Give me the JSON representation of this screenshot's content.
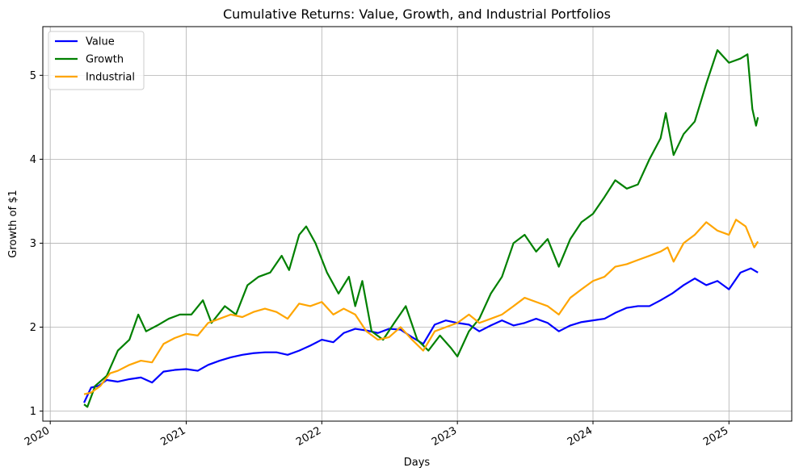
{
  "chart_data": {
    "type": "line",
    "title": "Cumulative Returns: Value, Growth, and Industrial Portfolios",
    "xlabel": "Days",
    "ylabel": "Growth of $1",
    "x_range": [
      "2019-12-12",
      "2025-06-19"
    ],
    "ylim": [
      0.88,
      5.58
    ],
    "x_ticks": [
      {
        "date": "2020-01-01",
        "label": "2020"
      },
      {
        "date": "2021-01-01",
        "label": "2021"
      },
      {
        "date": "2022-01-01",
        "label": "2022"
      },
      {
        "date": "2023-01-01",
        "label": "2023"
      },
      {
        "date": "2024-01-01",
        "label": "2024"
      },
      {
        "date": "2025-01-01",
        "label": "2025"
      }
    ],
    "y_ticks": [
      1,
      2,
      3,
      4,
      5
    ],
    "grid": true,
    "legend_position": "top-left",
    "series": [
      {
        "name": "Value",
        "color": "#0000ff",
        "points": [
          [
            "2020-04-01",
            1.1
          ],
          [
            "2020-04-20",
            1.28
          ],
          [
            "2020-05-10",
            1.3
          ],
          [
            "2020-06-01",
            1.37
          ],
          [
            "2020-07-01",
            1.35
          ],
          [
            "2020-08-01",
            1.38
          ],
          [
            "2020-09-01",
            1.4
          ],
          [
            "2020-10-01",
            1.34
          ],
          [
            "2020-11-01",
            1.47
          ],
          [
            "2020-12-01",
            1.49
          ],
          [
            "2021-01-01",
            1.5
          ],
          [
            "2021-02-01",
            1.48
          ],
          [
            "2021-03-01",
            1.55
          ],
          [
            "2021-04-01",
            1.6
          ],
          [
            "2021-05-01",
            1.64
          ],
          [
            "2021-06-01",
            1.67
          ],
          [
            "2021-07-01",
            1.69
          ],
          [
            "2021-08-01",
            1.7
          ],
          [
            "2021-09-01",
            1.7
          ],
          [
            "2021-10-01",
            1.67
          ],
          [
            "2021-11-01",
            1.72
          ],
          [
            "2021-12-01",
            1.78
          ],
          [
            "2022-01-01",
            1.85
          ],
          [
            "2022-02-01",
            1.82
          ],
          [
            "2022-03-01",
            1.93
          ],
          [
            "2022-04-01",
            1.98
          ],
          [
            "2022-05-01",
            1.96
          ],
          [
            "2022-06-01",
            1.93
          ],
          [
            "2022-07-01",
            1.98
          ],
          [
            "2022-08-01",
            1.97
          ],
          [
            "2022-09-01",
            1.88
          ],
          [
            "2022-10-01",
            1.8
          ],
          [
            "2022-11-01",
            2.03
          ],
          [
            "2022-12-01",
            2.08
          ],
          [
            "2023-01-01",
            2.05
          ],
          [
            "2023-02-01",
            2.03
          ],
          [
            "2023-03-01",
            1.95
          ],
          [
            "2023-04-01",
            2.02
          ],
          [
            "2023-05-01",
            2.08
          ],
          [
            "2023-06-01",
            2.02
          ],
          [
            "2023-07-01",
            2.05
          ],
          [
            "2023-08-01",
            2.1
          ],
          [
            "2023-09-01",
            2.05
          ],
          [
            "2023-10-01",
            1.95
          ],
          [
            "2023-11-01",
            2.02
          ],
          [
            "2023-12-01",
            2.06
          ],
          [
            "2024-01-01",
            2.08
          ],
          [
            "2024-02-01",
            2.1
          ],
          [
            "2024-03-01",
            2.17
          ],
          [
            "2024-04-01",
            2.23
          ],
          [
            "2024-05-01",
            2.25
          ],
          [
            "2024-06-01",
            2.25
          ],
          [
            "2024-07-01",
            2.32
          ],
          [
            "2024-08-01",
            2.4
          ],
          [
            "2024-09-01",
            2.5
          ],
          [
            "2024-10-01",
            2.58
          ],
          [
            "2024-11-01",
            2.5
          ],
          [
            "2024-12-01",
            2.55
          ],
          [
            "2025-01-01",
            2.45
          ],
          [
            "2025-02-01",
            2.65
          ],
          [
            "2025-03-01",
            2.7
          ],
          [
            "2025-03-20",
            2.65
          ]
        ]
      },
      {
        "name": "Growth",
        "color": "#008000",
        "points": [
          [
            "2020-04-01",
            1.08
          ],
          [
            "2020-04-10",
            1.05
          ],
          [
            "2020-05-01",
            1.3
          ],
          [
            "2020-06-01",
            1.42
          ],
          [
            "2020-07-01",
            1.72
          ],
          [
            "2020-08-01",
            1.85
          ],
          [
            "2020-08-25",
            2.15
          ],
          [
            "2020-09-15",
            1.95
          ],
          [
            "2020-10-15",
            2.02
          ],
          [
            "2020-11-15",
            2.1
          ],
          [
            "2020-12-15",
            2.15
          ],
          [
            "2021-01-15",
            2.15
          ],
          [
            "2021-02-15",
            2.32
          ],
          [
            "2021-03-10",
            2.05
          ],
          [
            "2021-04-15",
            2.25
          ],
          [
            "2021-05-15",
            2.15
          ],
          [
            "2021-06-15",
            2.5
          ],
          [
            "2021-07-15",
            2.6
          ],
          [
            "2021-08-15",
            2.65
          ],
          [
            "2021-09-15",
            2.85
          ],
          [
            "2021-10-05",
            2.68
          ],
          [
            "2021-11-01",
            3.1
          ],
          [
            "2021-11-20",
            3.2
          ],
          [
            "2021-12-15",
            3.0
          ],
          [
            "2022-01-15",
            2.65
          ],
          [
            "2022-02-15",
            2.4
          ],
          [
            "2022-03-15",
            2.6
          ],
          [
            "2022-04-01",
            2.25
          ],
          [
            "2022-04-20",
            2.55
          ],
          [
            "2022-05-15",
            1.95
          ],
          [
            "2022-06-15",
            1.85
          ],
          [
            "2022-07-15",
            2.05
          ],
          [
            "2022-08-15",
            2.25
          ],
          [
            "2022-09-15",
            1.85
          ],
          [
            "2022-10-15",
            1.72
          ],
          [
            "2022-11-15",
            1.9
          ],
          [
            "2022-12-15",
            1.75
          ],
          [
            "2023-01-01",
            1.65
          ],
          [
            "2023-02-01",
            1.95
          ],
          [
            "2023-03-01",
            2.1
          ],
          [
            "2023-04-01",
            2.4
          ],
          [
            "2023-05-01",
            2.6
          ],
          [
            "2023-06-01",
            3.0
          ],
          [
            "2023-07-01",
            3.1
          ],
          [
            "2023-08-01",
            2.9
          ],
          [
            "2023-09-01",
            3.05
          ],
          [
            "2023-10-01",
            2.72
          ],
          [
            "2023-11-01",
            3.05
          ],
          [
            "2023-12-01",
            3.25
          ],
          [
            "2024-01-01",
            3.35
          ],
          [
            "2024-02-01",
            3.55
          ],
          [
            "2024-03-01",
            3.75
          ],
          [
            "2024-04-01",
            3.65
          ],
          [
            "2024-05-01",
            3.7
          ],
          [
            "2024-06-01",
            4.0
          ],
          [
            "2024-07-01",
            4.25
          ],
          [
            "2024-07-15",
            4.55
          ],
          [
            "2024-08-05",
            4.05
          ],
          [
            "2024-09-01",
            4.3
          ],
          [
            "2024-10-01",
            4.45
          ],
          [
            "2024-11-01",
            4.9
          ],
          [
            "2024-12-01",
            5.3
          ],
          [
            "2025-01-01",
            5.15
          ],
          [
            "2025-02-01",
            5.2
          ],
          [
            "2025-02-20",
            5.25
          ],
          [
            "2025-03-05",
            4.6
          ],
          [
            "2025-03-15",
            4.4
          ],
          [
            "2025-03-20",
            4.5
          ]
        ]
      },
      {
        "name": "Industrial",
        "color": "#ffa500",
        "points": [
          [
            "2020-04-01",
            1.2
          ],
          [
            "2020-04-20",
            1.22
          ],
          [
            "2020-05-15",
            1.3
          ],
          [
            "2020-06-10",
            1.45
          ],
          [
            "2020-07-01",
            1.48
          ],
          [
            "2020-08-01",
            1.55
          ],
          [
            "2020-09-01",
            1.6
          ],
          [
            "2020-10-01",
            1.58
          ],
          [
            "2020-11-01",
            1.8
          ],
          [
            "2020-12-01",
            1.87
          ],
          [
            "2021-01-01",
            1.92
          ],
          [
            "2021-02-01",
            1.9
          ],
          [
            "2021-03-01",
            2.05
          ],
          [
            "2021-04-01",
            2.1
          ],
          [
            "2021-05-01",
            2.15
          ],
          [
            "2021-06-01",
            2.12
          ],
          [
            "2021-07-01",
            2.18
          ],
          [
            "2021-08-01",
            2.22
          ],
          [
            "2021-09-01",
            2.18
          ],
          [
            "2021-10-01",
            2.1
          ],
          [
            "2021-11-01",
            2.28
          ],
          [
            "2021-12-01",
            2.25
          ],
          [
            "2022-01-01",
            2.3
          ],
          [
            "2022-02-01",
            2.15
          ],
          [
            "2022-03-01",
            2.22
          ],
          [
            "2022-04-01",
            2.15
          ],
          [
            "2022-05-01",
            1.95
          ],
          [
            "2022-06-01",
            1.85
          ],
          [
            "2022-07-01",
            1.88
          ],
          [
            "2022-08-01",
            2.0
          ],
          [
            "2022-09-01",
            1.85
          ],
          [
            "2022-10-01",
            1.72
          ],
          [
            "2022-11-01",
            1.95
          ],
          [
            "2022-12-01",
            2.0
          ],
          [
            "2023-01-01",
            2.05
          ],
          [
            "2023-02-01",
            2.15
          ],
          [
            "2023-03-01",
            2.05
          ],
          [
            "2023-04-01",
            2.1
          ],
          [
            "2023-05-01",
            2.15
          ],
          [
            "2023-06-01",
            2.25
          ],
          [
            "2023-07-01",
            2.35
          ],
          [
            "2023-08-01",
            2.3
          ],
          [
            "2023-09-01",
            2.25
          ],
          [
            "2023-10-01",
            2.15
          ],
          [
            "2023-11-01",
            2.35
          ],
          [
            "2023-12-01",
            2.45
          ],
          [
            "2024-01-01",
            2.55
          ],
          [
            "2024-02-01",
            2.6
          ],
          [
            "2024-03-01",
            2.72
          ],
          [
            "2024-04-01",
            2.75
          ],
          [
            "2024-05-01",
            2.8
          ],
          [
            "2024-06-01",
            2.85
          ],
          [
            "2024-07-01",
            2.9
          ],
          [
            "2024-07-20",
            2.95
          ],
          [
            "2024-08-05",
            2.78
          ],
          [
            "2024-09-01",
            3.0
          ],
          [
            "2024-10-01",
            3.1
          ],
          [
            "2024-11-01",
            3.25
          ],
          [
            "2024-12-01",
            3.15
          ],
          [
            "2025-01-01",
            3.1
          ],
          [
            "2025-01-20",
            3.28
          ],
          [
            "2025-02-15",
            3.2
          ],
          [
            "2025-03-10",
            2.95
          ],
          [
            "2025-03-20",
            3.02
          ]
        ]
      }
    ]
  }
}
